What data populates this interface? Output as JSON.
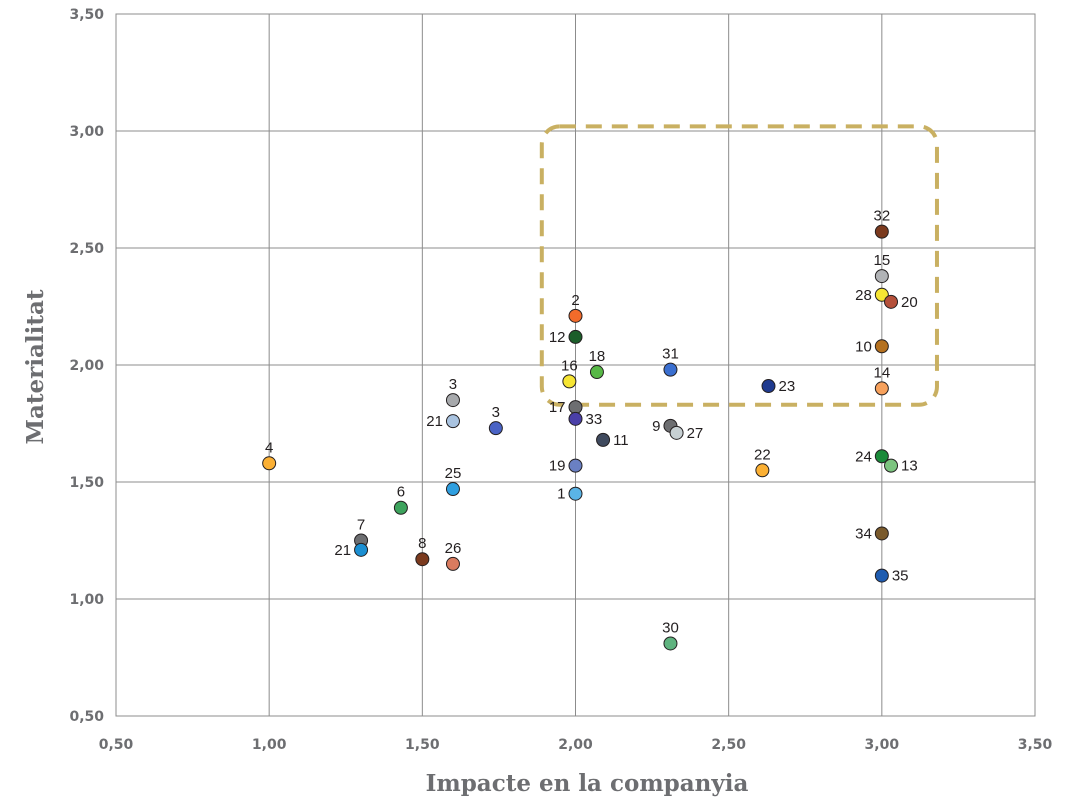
{
  "chart_data": {
    "type": "scatter",
    "xlabel": "Impacte en la companyia",
    "ylabel": "Materialitat",
    "xlim": [
      0.5,
      3.5
    ],
    "ylim": [
      0.5,
      3.5
    ],
    "xticks": [
      "0,50",
      "1,00",
      "1,50",
      "2,00",
      "2,50",
      "3,00",
      "3,50"
    ],
    "yticks": [
      "0,50",
      "1,00",
      "1,50",
      "2,00",
      "2,50",
      "3,00",
      "3,50"
    ],
    "grid": true,
    "highlight_region": {
      "x": [
        1.89,
        3.18
      ],
      "y": [
        1.83,
        3.02
      ],
      "color": "#c9b062",
      "style": "dashed"
    },
    "points": [
      {
        "label": "4",
        "x": 1.0,
        "y": 1.58,
        "color": "#fbb034",
        "label_pos": "above"
      },
      {
        "label": "7",
        "x": 1.3,
        "y": 1.25,
        "color": "#6d6e71",
        "label_pos": "above"
      },
      {
        "label": "21",
        "x": 1.3,
        "y": 1.21,
        "color": "#1b8fd2",
        "label_pos": "left"
      },
      {
        "label": "6",
        "x": 1.43,
        "y": 1.39,
        "color": "#3da35d",
        "label_pos": "above"
      },
      {
        "label": "8",
        "x": 1.5,
        "y": 1.17,
        "color": "#7b3a1e",
        "label_pos": "above"
      },
      {
        "label": "3",
        "x": 1.6,
        "y": 1.85,
        "color": "#a7a9ac",
        "label_pos": "above"
      },
      {
        "label": "21",
        "x": 1.6,
        "y": 1.76,
        "color": "#a9c3e0",
        "label_pos": "left"
      },
      {
        "label": "25",
        "x": 1.6,
        "y": 1.47,
        "color": "#2f9fe0",
        "label_pos": "above"
      },
      {
        "label": "26",
        "x": 1.6,
        "y": 1.15,
        "color": "#d97b5f",
        "label_pos": "above"
      },
      {
        "label": "3",
        "x": 1.74,
        "y": 1.73,
        "color": "#4a63c5",
        "label_pos": "above"
      },
      {
        "label": "2",
        "x": 2.0,
        "y": 2.21,
        "color": "#f26b2a",
        "label_pos": "above"
      },
      {
        "label": "12",
        "x": 2.0,
        "y": 2.12,
        "color": "#1c5e2a",
        "label_pos": "left"
      },
      {
        "label": "16",
        "x": 1.98,
        "y": 1.93,
        "color": "#f6e533",
        "label_pos": "above"
      },
      {
        "label": "18",
        "x": 2.07,
        "y": 1.97,
        "color": "#58b847",
        "label_pos": "above"
      },
      {
        "label": "17",
        "x": 2.0,
        "y": 1.82,
        "color": "#6d6e71",
        "label_pos": "left"
      },
      {
        "label": "33",
        "x": 2.0,
        "y": 1.77,
        "color": "#4a3fa8",
        "label_pos": "right"
      },
      {
        "label": "11",
        "x": 2.09,
        "y": 1.68,
        "color": "#3f4a5e",
        "label_pos": "right"
      },
      {
        "label": "19",
        "x": 2.0,
        "y": 1.57,
        "color": "#6a80c3",
        "label_pos": "left"
      },
      {
        "label": "1",
        "x": 2.0,
        "y": 1.45,
        "color": "#5ab4e6",
        "label_pos": "left"
      },
      {
        "label": "31",
        "x": 2.31,
        "y": 1.98,
        "color": "#3a6fd0",
        "label_pos": "above"
      },
      {
        "label": "9",
        "x": 2.31,
        "y": 1.74,
        "color": "#6d6e71",
        "label_pos": "left"
      },
      {
        "label": "27",
        "x": 2.33,
        "y": 1.71,
        "color": "#c7d0d3",
        "label_pos": "right"
      },
      {
        "label": "30",
        "x": 2.31,
        "y": 0.81,
        "color": "#5fb37f",
        "label_pos": "above"
      },
      {
        "label": "23",
        "x": 2.63,
        "y": 1.91,
        "color": "#1f3a8f",
        "label_pos": "right"
      },
      {
        "label": "22",
        "x": 2.61,
        "y": 1.55,
        "color": "#fbb034",
        "label_pos": "above"
      },
      {
        "label": "32",
        "x": 3.0,
        "y": 2.57,
        "color": "#7b3a1e",
        "label_pos": "above"
      },
      {
        "label": "15",
        "x": 3.0,
        "y": 2.38,
        "color": "#b1b3b6",
        "label_pos": "above"
      },
      {
        "label": "28",
        "x": 3.0,
        "y": 2.3,
        "color": "#f6e533",
        "label_pos": "left"
      },
      {
        "label": "20",
        "x": 3.03,
        "y": 2.27,
        "color": "#b5503a",
        "label_pos": "right"
      },
      {
        "label": "10",
        "x": 3.0,
        "y": 2.08,
        "color": "#b5711f",
        "label_pos": "left"
      },
      {
        "label": "14",
        "x": 3.0,
        "y": 1.9,
        "color": "#f7a15c",
        "label_pos": "above"
      },
      {
        "label": "24",
        "x": 3.0,
        "y": 1.61,
        "color": "#1b8a3a",
        "label_pos": "left"
      },
      {
        "label": "13",
        "x": 3.03,
        "y": 1.57,
        "color": "#7cc47f",
        "label_pos": "right"
      },
      {
        "label": "34",
        "x": 3.0,
        "y": 1.28,
        "color": "#7a5a2c",
        "label_pos": "left"
      },
      {
        "label": "35",
        "x": 3.0,
        "y": 1.1,
        "color": "#1f5cb0",
        "label_pos": "right"
      }
    ]
  }
}
